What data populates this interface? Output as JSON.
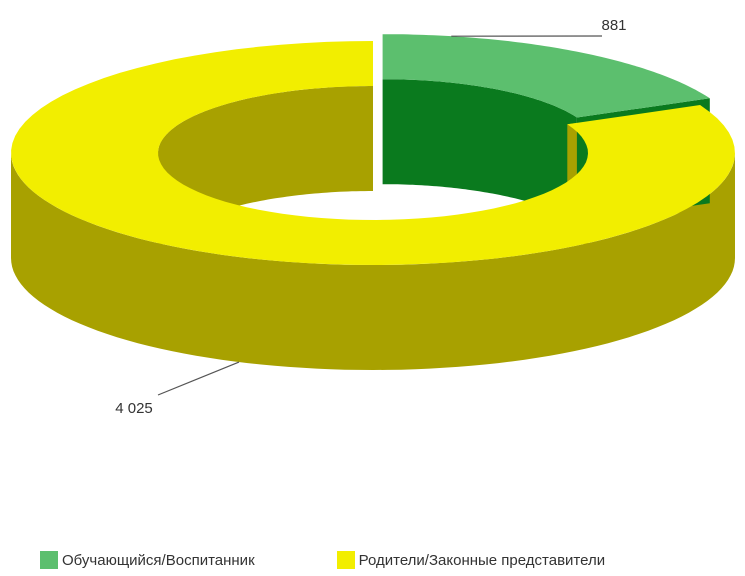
{
  "chart_data": {
    "type": "pie",
    "style": "3d-donut",
    "legend_position": "bottom",
    "slices": [
      {
        "name": "Обучающийся/Воспитанник",
        "value": 881,
        "label": "881",
        "color": "#5cbf6e",
        "side_color": "#0a7a1e"
      },
      {
        "name": "Родители/Законные представители",
        "value": 4025,
        "label": "4 025",
        "color": "#f2ee00",
        "side_color": "#a8a100"
      }
    ]
  }
}
